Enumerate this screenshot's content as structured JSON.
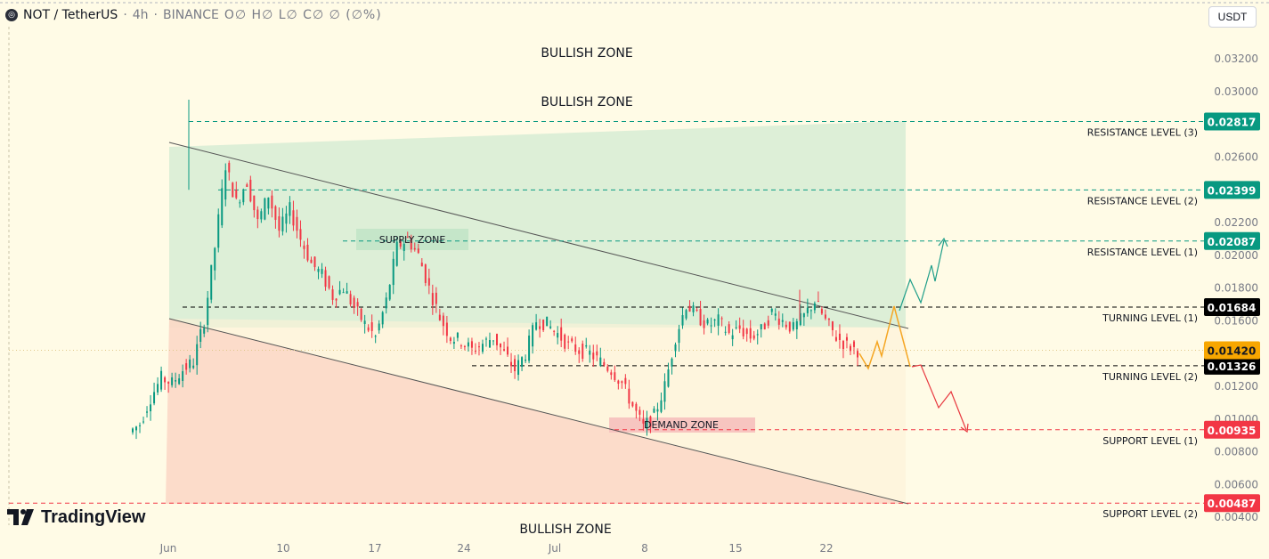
{
  "header": {
    "symbol": "NOT / TetherUS",
    "interval": "4h",
    "exchange": "BINANCE",
    "ohlc": "O∅ H∅ L∅ C∅ ∅ (∅%)"
  },
  "currency_button": "USDT",
  "branding": {
    "logo_text": "TradingView"
  },
  "chart_data": {
    "type": "candlestick",
    "title": "NOT / TetherUS · 4h · BINANCE",
    "y_axis": {
      "min": 0.0038,
      "max": 0.0335,
      "tick_labels": [
        "0.03200",
        "0.03000",
        "0.02800",
        "0.02600",
        "0.02400",
        "0.02200",
        "0.02000",
        "0.01800",
        "0.01600",
        "0.01400",
        "0.01200",
        "0.01000",
        "0.00800",
        "0.00600",
        "0.00400"
      ]
    },
    "x_axis": {
      "tick_labels": [
        "Jun",
        "10",
        "17",
        "24",
        "Jul",
        "8",
        "15",
        "22"
      ]
    },
    "price_close_approx": [
      0.0092,
      0.0097,
      0.0113,
      0.0125,
      0.0122,
      0.013,
      0.0135,
      0.016,
      0.0205,
      0.0255,
      0.0232,
      0.0245,
      0.022,
      0.0237,
      0.0215,
      0.0228,
      0.021,
      0.0195,
      0.0188,
      0.0175,
      0.018,
      0.0168,
      0.0158,
      0.015,
      0.0172,
      0.0205,
      0.021,
      0.02,
      0.018,
      0.0162,
      0.015,
      0.0148,
      0.0142,
      0.0146,
      0.015,
      0.014,
      0.013,
      0.014,
      0.016,
      0.0158,
      0.0152,
      0.0145,
      0.0142,
      0.014,
      0.0135,
      0.013,
      0.0122,
      0.0108,
      0.0095,
      0.0102,
      0.012,
      0.015,
      0.017,
      0.0163,
      0.0157,
      0.016,
      0.0152,
      0.0155,
      0.015,
      0.0154,
      0.0165,
      0.016,
      0.0155,
      0.0163,
      0.0172,
      0.016,
      0.015,
      0.0145,
      0.0142
    ],
    "horizontal_levels": [
      {
        "label": "RESISTANCE LEVEL (3)",
        "price": 0.02817,
        "price_label": "0.02817",
        "color": "#089981",
        "style": "dashed"
      },
      {
        "label": "RESISTANCE LEVEL (2)",
        "price": 0.02399,
        "price_label": "0.02399",
        "color": "#089981",
        "style": "dashed"
      },
      {
        "label": "RESISTANCE LEVEL (1)",
        "price": 0.02087,
        "price_label": "0.02087",
        "color": "#089981",
        "style": "dashed"
      },
      {
        "label": "TURNING LEVEL (1)",
        "price": 0.01684,
        "price_label": "0.01684",
        "color": "#000000",
        "style": "dashed"
      },
      {
        "label": "TURNING LEVEL (2)",
        "price": 0.01326,
        "price_label": "0.01326",
        "color": "#000000",
        "style": "dashed"
      },
      {
        "label": "SUPPORT LEVEL (1)",
        "price": 0.00935,
        "price_label": "0.00935",
        "color": "#f23645",
        "style": "dashed"
      },
      {
        "label": "SUPPORT LEVEL (2)",
        "price": 0.00487,
        "price_label": "0.00487",
        "color": "#f23645",
        "style": "dashed"
      }
    ],
    "current_price": {
      "price": 0.0142,
      "label": "0.01420",
      "color": "#f7a600"
    },
    "zone_labels": {
      "bullish_top_1": "BULLISH ZONE",
      "bullish_top_2": "BULLISH ZONE",
      "bullish_bottom": "BULLISH ZONE",
      "supply": "SUPPLY ZONE",
      "demand": "DEMAND ZONE"
    },
    "colors": {
      "up": "#089981",
      "down": "#f23645",
      "background": "#fffbe6",
      "green_zone": "#d6ecd0",
      "red_zone": "#fbd9c8",
      "projection_up": "#1f9e89",
      "projection_mid": "#f5a623",
      "projection_down": "#e8383f"
    },
    "grid": false,
    "legend": "none"
  }
}
